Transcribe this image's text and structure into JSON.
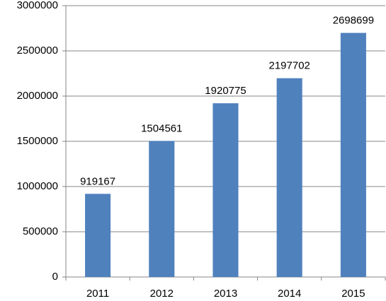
{
  "chart_data": {
    "type": "bar",
    "categories": [
      "2011",
      "2012",
      "2013",
      "2014",
      "2015"
    ],
    "values": [
      919167,
      1504561,
      1920775,
      2197702,
      2698699
    ],
    "color": "#4f81bd",
    "ylim": [
      0,
      3000000
    ],
    "yticks": [
      0,
      500000,
      1000000,
      1500000,
      2000000,
      2500000,
      3000000
    ],
    "grid": true,
    "data_labels": true
  }
}
